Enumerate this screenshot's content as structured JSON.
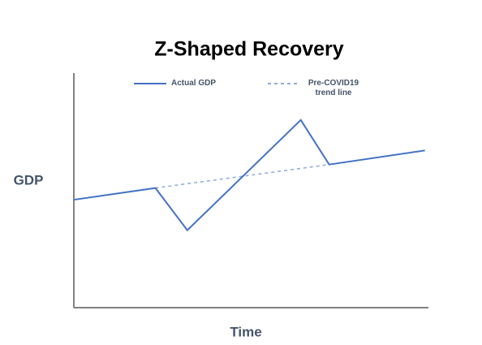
{
  "chart_data": {
    "type": "line",
    "title": "Z-Shaped Recovery",
    "x_label": "Time",
    "y_label": "GDP",
    "xlim": [
      0,
      100
    ],
    "ylim": [
      0,
      100
    ],
    "series": [
      {
        "name": "Actual GDP",
        "color": "#4472c4",
        "style": "solid",
        "x": [
          0,
          23,
          32,
          64,
          72,
          99
        ],
        "values": [
          46,
          51,
          33,
          80,
          61,
          67
        ]
      },
      {
        "name": "Pre-COVID19 trend line",
        "color": "#8faadc",
        "style": "dashed",
        "x": [
          23,
          72
        ],
        "values": [
          51,
          61
        ]
      }
    ],
    "legend": "top"
  }
}
